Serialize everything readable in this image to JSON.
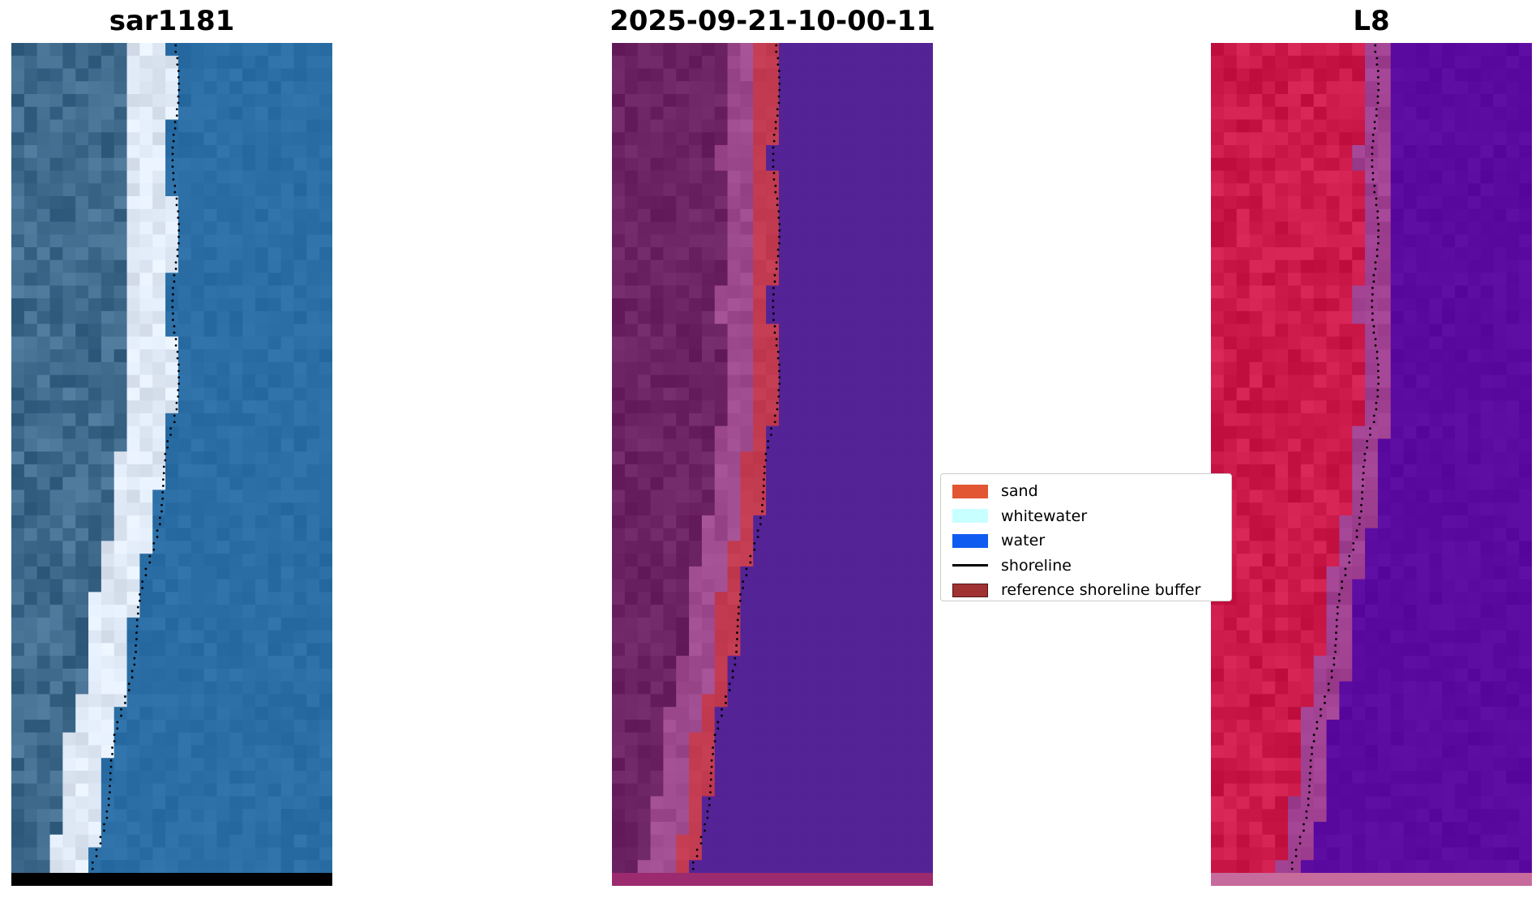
{
  "panels": {
    "rgb": {
      "title": "sar1181"
    },
    "classification": {
      "title": "2025-09-21-10-00-11"
    },
    "index": {
      "title": "L8"
    }
  },
  "legend": {
    "items": [
      {
        "label": "sand",
        "color": "#e35634",
        "kind": "patch"
      },
      {
        "label": "whitewater",
        "color": "#c8ffff",
        "kind": "patch"
      },
      {
        "label": "water",
        "color": "#0f5cf0",
        "kind": "patch"
      },
      {
        "label": "shoreline",
        "color": "#000000",
        "kind": "line"
      },
      {
        "label": "reference shoreline buffer",
        "color": "#a03232",
        "kind": "patch"
      }
    ]
  },
  "colors": {
    "rgb_land": "#3f6a8c",
    "rgb_surf": "#dfe8f5",
    "rgb_water": "#2a6ea5",
    "class_land": "#6b2363",
    "class_beach": "#9e4a8e",
    "class_sand": "#c23b50",
    "class_water": "#542396",
    "index_land": "#cc1a4a",
    "index_transition": "#a04090",
    "index_water": "#5b0aa0",
    "shoreline_dots": "#000000",
    "nodata_rgb": "#000000",
    "nodata_class": "#9c2a6e",
    "nodata_index": "#c76a9c"
  }
}
